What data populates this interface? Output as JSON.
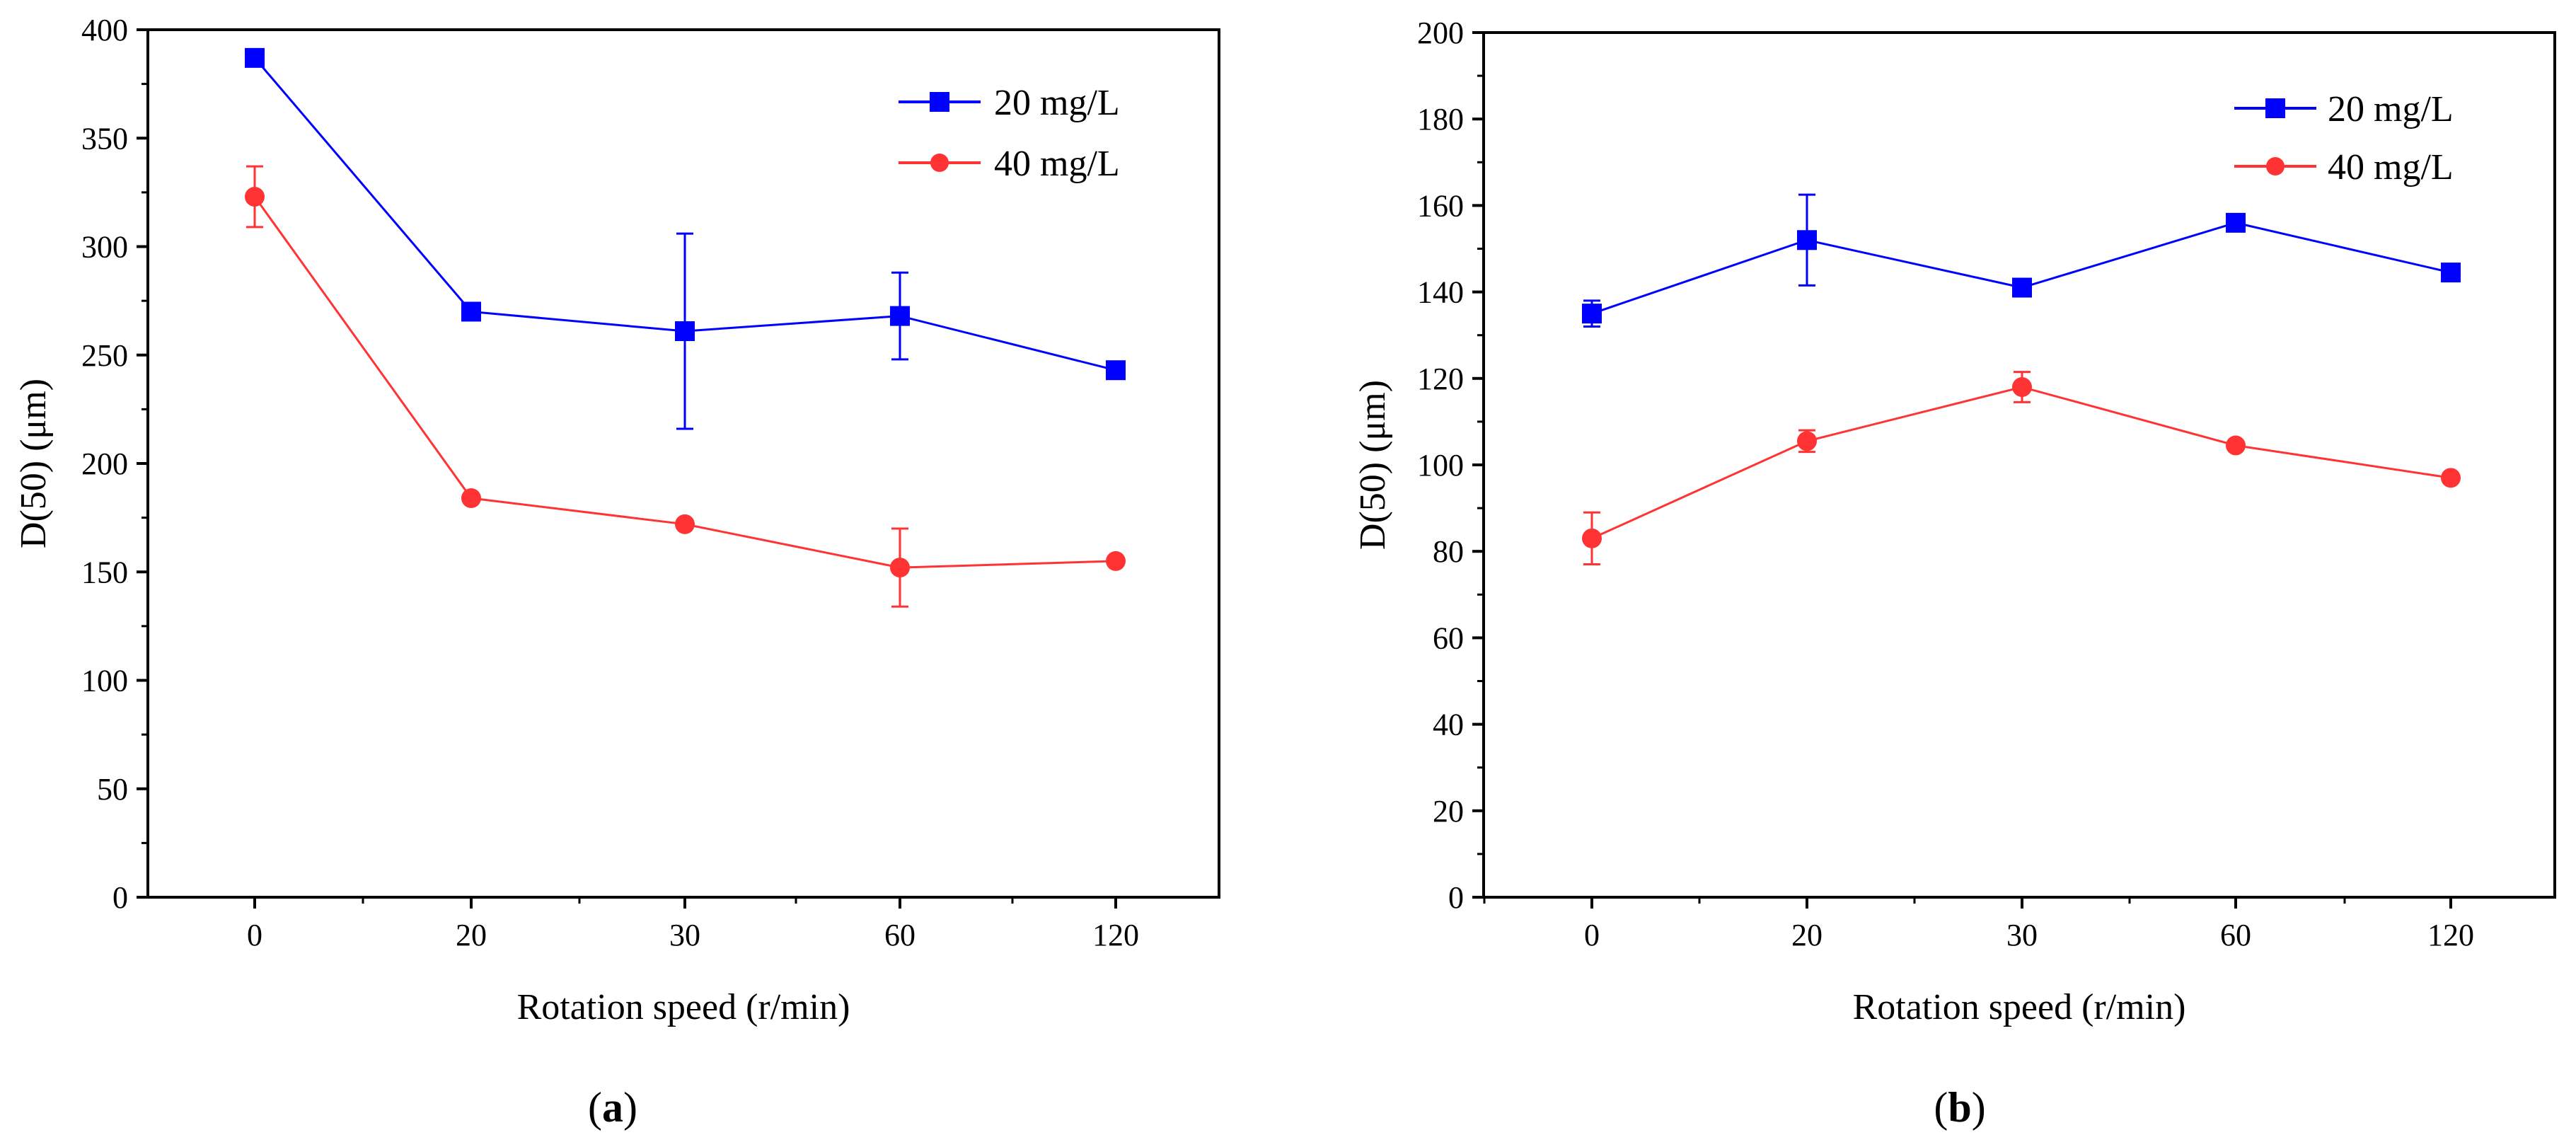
{
  "chart_data": [
    {
      "type": "line",
      "panel_label": "(a)",
      "panel_letter": "a",
      "xlabel": "Rotation speed (r/min)",
      "ylabel": "D(50) (μm)",
      "categories": [
        "0",
        "20",
        "30",
        "60",
        "120"
      ],
      "ylim": [
        0,
        400
      ],
      "yticks": [
        0,
        50,
        100,
        150,
        200,
        250,
        300,
        350,
        400
      ],
      "grid": false,
      "legend_position": "top-right",
      "series": [
        {
          "name": "20 mg/L",
          "color": "#0000ff",
          "marker": "square",
          "values": [
            387,
            270,
            261,
            268,
            243
          ],
          "errors": [
            0,
            0,
            45,
            20,
            0
          ]
        },
        {
          "name": "40 mg/L",
          "color": "#ff3333",
          "marker": "circle",
          "values": [
            323,
            184,
            172,
            152,
            155
          ],
          "errors": [
            14,
            0,
            0,
            18,
            0
          ]
        }
      ]
    },
    {
      "type": "line",
      "panel_label": "(b)",
      "panel_letter": "b",
      "xlabel": "Rotation speed (r/min)",
      "ylabel": "D(50) (μm)",
      "categories": [
        "0",
        "20",
        "30",
        "60",
        "120"
      ],
      "ylim": [
        0,
        200
      ],
      "yticks": [
        0,
        20,
        40,
        60,
        80,
        100,
        120,
        140,
        160,
        180,
        200
      ],
      "grid": false,
      "legend_position": "top-right",
      "series": [
        {
          "name": "20 mg/L",
          "color": "#0000ff",
          "marker": "square",
          "values": [
            135,
            152,
            141,
            156,
            144.5
          ],
          "errors": [
            3,
            10.5,
            0,
            0,
            0
          ]
        },
        {
          "name": "40 mg/L",
          "color": "#ff3333",
          "marker": "circle",
          "values": [
            83,
            105.5,
            118,
            104.5,
            97
          ],
          "errors": [
            6,
            2.5,
            3.5,
            0,
            0
          ]
        }
      ]
    }
  ]
}
